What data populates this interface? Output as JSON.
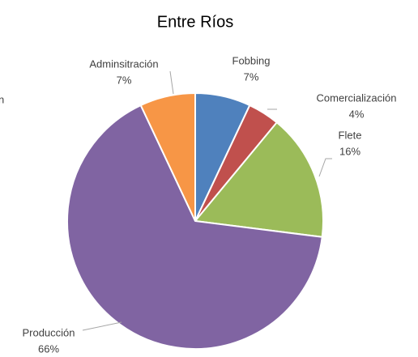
{
  "chart_data": {
    "type": "pie",
    "title": "Entre Ríos",
    "categories": [
      "Fobbing",
      "Comercialización",
      "Flete",
      "Producción",
      "Adminsitración"
    ],
    "values": [
      7,
      4,
      16,
      66,
      7
    ],
    "value_labels": [
      "7%",
      "4%",
      "16%",
      "66%",
      "7%"
    ],
    "colors": [
      "#4f81bd",
      "#c0504d",
      "#9bbb59",
      "#8064a2",
      "#f79646"
    ],
    "annotations": [
      "n"
    ]
  }
}
